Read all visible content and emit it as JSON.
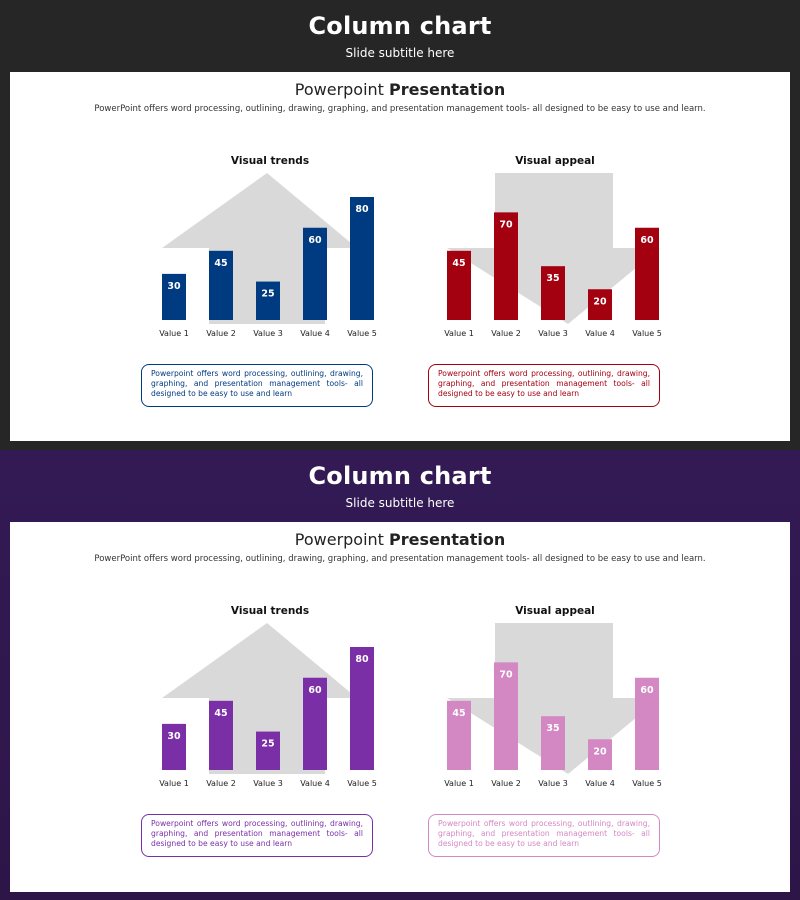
{
  "slides": [
    {
      "title": "Column chart",
      "subtitle": "Slide subtitle here",
      "heading_light": "Powerpoint ",
      "heading_bold": "Presentation",
      "description": "PowerPoint offers word processing, outlining, drawing, graphing, and presentation management tools- all designed to be easy to use and learn.",
      "left_note": "Powerpoint offers word processing, outlining, drawing, graphing, and presentation management tools- all designed to be easy to use and learn",
      "right_note": "Powerpoint offers word processing, outlining, drawing, graphing, and presentation management tools- all designed to be easy to use and learn",
      "colors": {
        "left": "#003a80",
        "right": "#a30010"
      }
    },
    {
      "title": "Column chart",
      "subtitle": "Slide subtitle here",
      "heading_light": "Powerpoint ",
      "heading_bold": "Presentation",
      "description": "PowerPoint offers word processing, outlining, drawing, graphing, and presentation management tools- all designed to be easy to use and learn.",
      "left_note": "Powerpoint offers word processing, outlining, drawing, graphing, and presentation management tools- all designed to be easy to use and learn",
      "right_note": "Powerpoint offers word processing, outlining, drawing, graphing, and presentation management tools- all designed to be easy to use and learn",
      "colors": {
        "left": "#7a2fa6",
        "right": "#d388c4"
      }
    }
  ],
  "chart_data": [
    {
      "type": "bar",
      "title": "Visual trends",
      "categories": [
        "Value 1",
        "Value 2",
        "Value 3",
        "Value 4",
        "Value 5"
      ],
      "values": [
        30,
        45,
        25,
        60,
        80
      ],
      "ylim": [
        0,
        80
      ],
      "background_arrow": "up",
      "color": "#003a80"
    },
    {
      "type": "bar",
      "title": "Visual appeal",
      "categories": [
        "Value 1",
        "Value 2",
        "Value 3",
        "Value 4",
        "Value 5"
      ],
      "values": [
        45,
        70,
        35,
        20,
        60
      ],
      "ylim": [
        0,
        80
      ],
      "background_arrow": "down",
      "color": "#a30010"
    },
    {
      "type": "bar",
      "title": "Visual trends",
      "categories": [
        "Value 1",
        "Value 2",
        "Value 3",
        "Value 4",
        "Value 5"
      ],
      "values": [
        30,
        45,
        25,
        60,
        80
      ],
      "ylim": [
        0,
        80
      ],
      "background_arrow": "up",
      "color": "#7a2fa6"
    },
    {
      "type": "bar",
      "title": "Visual appeal",
      "categories": [
        "Value 1",
        "Value 2",
        "Value 3",
        "Value 4",
        "Value 5"
      ],
      "values": [
        45,
        70,
        35,
        20,
        60
      ],
      "ylim": [
        0,
        80
      ],
      "background_arrow": "down",
      "color": "#d388c4"
    }
  ]
}
